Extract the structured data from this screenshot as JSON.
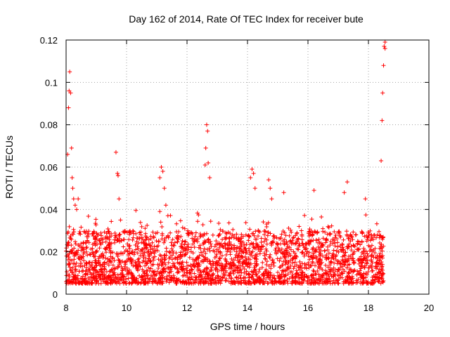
{
  "chart_data": {
    "type": "scatter",
    "title": "Day 162 of 2014, Rate Of TEC Index for receiver bute",
    "xlabel": "GPS time / hours",
    "ylabel": "ROTI / TECUs",
    "xlim": [
      8,
      20
    ],
    "ylim": [
      0,
      0.12
    ],
    "xticks": [
      8,
      10,
      12,
      14,
      16,
      18,
      20
    ],
    "xtick_labels": [
      "8",
      "10",
      "12",
      "14",
      "16",
      "18",
      "20"
    ],
    "yticks": [
      0,
      0.02,
      0.04,
      0.06,
      0.08,
      0.1,
      0.12
    ],
    "ytick_labels": [
      "0",
      "0.02",
      "0.04",
      "0.06",
      "0.08",
      "0.1",
      "0.12"
    ],
    "grid": true,
    "marker": "+",
    "series": [
      {
        "name": "ROTI",
        "color": "#ff0000",
        "x_range": [
          8.0,
          18.5
        ],
        "typical_range": [
          0.005,
          0.03
        ],
        "x": [
          8.05,
          8.08,
          8.1,
          8.12,
          8.15,
          8.18,
          8.2,
          8.22,
          8.25,
          8.3,
          8.35,
          8.4,
          9.65,
          9.7,
          9.72,
          9.75,
          9.8,
          11.1,
          11.15,
          11.2,
          11.25,
          11.3,
          12.6,
          12.62,
          12.65,
          12.68,
          12.7,
          12.75,
          14.1,
          14.15,
          14.2,
          14.25,
          14.7,
          14.75,
          14.8,
          15.2,
          16.2,
          17.2,
          17.3,
          17.9,
          18.42,
          18.45,
          18.47,
          18.5,
          18.52,
          18.55,
          18.55
        ],
        "y": [
          0.066,
          0.088,
          0.096,
          0.105,
          0.095,
          0.069,
          0.055,
          0.05,
          0.045,
          0.042,
          0.04,
          0.045,
          0.067,
          0.057,
          0.056,
          0.045,
          0.035,
          0.055,
          0.06,
          0.058,
          0.05,
          0.042,
          0.061,
          0.069,
          0.08,
          0.077,
          0.062,
          0.055,
          0.055,
          0.059,
          0.057,
          0.05,
          0.054,
          0.05,
          0.045,
          0.048,
          0.049,
          0.048,
          0.053,
          0.045,
          0.063,
          0.082,
          0.095,
          0.108,
          0.117,
          0.119,
          0.116
        ]
      }
    ]
  }
}
